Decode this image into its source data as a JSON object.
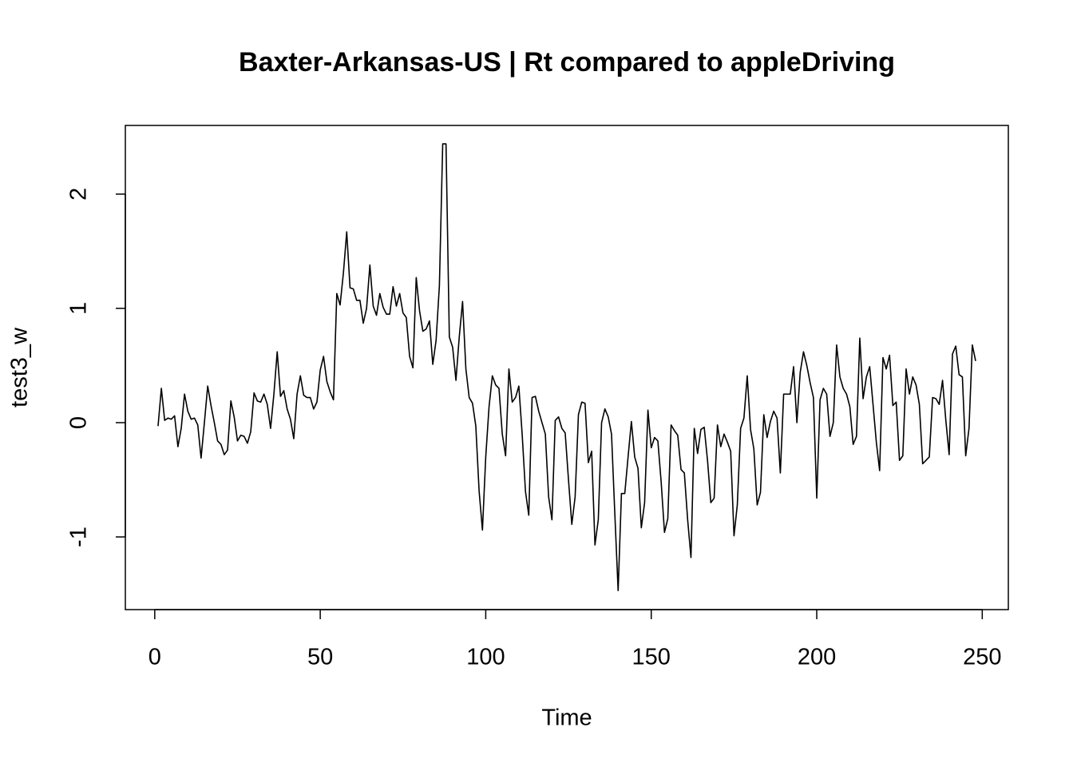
{
  "chart_data": {
    "type": "line",
    "title": "Baxter-Arkansas-US | Rt compared to appleDriving",
    "x_label": "Time",
    "y_label": "test3_w",
    "color": "#000000",
    "x": [
      1,
      2,
      3,
      4,
      5,
      6,
      7,
      8,
      9,
      10,
      11,
      12,
      13,
      14,
      15,
      16,
      17,
      18,
      19,
      20,
      21,
      22,
      23,
      24,
      25,
      26,
      27,
      28,
      29,
      30,
      31,
      32,
      33,
      34,
      35,
      36,
      37,
      38,
      39,
      40,
      41,
      42,
      43,
      44,
      45,
      46,
      47,
      48,
      49,
      50,
      51,
      52,
      53,
      54,
      55,
      56,
      57,
      58,
      59,
      60,
      61,
      62,
      63,
      64,
      65,
      66,
      67,
      68,
      69,
      70,
      71,
      72,
      73,
      74,
      75,
      76,
      77,
      78,
      79,
      80,
      81,
      82,
      83,
      84,
      85,
      86,
      87,
      88,
      89,
      90,
      91,
      92,
      93,
      94,
      95,
      96,
      97,
      98,
      99,
      100,
      101,
      102,
      103,
      104,
      105,
      106,
      107,
      108,
      109,
      110,
      111,
      112,
      113,
      114,
      115,
      116,
      117,
      118,
      119,
      120,
      121,
      122,
      123,
      124,
      125,
      126,
      127,
      128,
      129,
      130,
      131,
      132,
      133,
      134,
      135,
      136,
      137,
      138,
      139,
      140,
      141,
      142,
      143,
      144,
      145,
      146,
      147,
      148,
      149,
      150,
      151,
      152,
      153,
      154,
      155,
      156,
      157,
      158,
      159,
      160,
      161,
      162,
      163,
      164,
      165,
      166,
      167,
      168,
      169,
      170,
      171,
      172,
      173,
      174,
      175,
      176,
      177,
      178,
      179,
      180,
      181,
      182,
      183,
      184,
      185,
      186,
      187,
      188,
      189,
      190,
      191,
      192,
      193,
      194,
      195,
      196,
      197,
      198,
      199,
      200,
      201,
      202,
      203,
      204,
      205,
      206,
      207,
      208,
      209,
      210,
      211,
      212,
      213,
      214,
      215,
      216,
      217,
      218,
      219,
      220,
      221,
      222,
      223,
      224,
      225,
      226,
      227,
      228,
      229,
      230,
      231,
      232,
      233,
      234,
      235,
      236,
      237,
      238,
      239,
      240,
      241,
      242,
      243,
      244,
      245,
      246,
      247,
      248
    ],
    "values": [
      -0.03,
      0.3,
      0.02,
      0.04,
      0.03,
      0.06,
      -0.21,
      -0.05,
      0.25,
      0.1,
      0.03,
      0.04,
      -0.02,
      -0.31,
      0.0,
      0.32,
      0.15,
      0.0,
      -0.16,
      -0.19,
      -0.28,
      -0.24,
      0.19,
      0.05,
      -0.16,
      -0.11,
      -0.12,
      -0.18,
      -0.08,
      0.26,
      0.19,
      0.18,
      0.25,
      0.16,
      -0.05,
      0.25,
      0.62,
      0.23,
      0.28,
      0.12,
      0.03,
      -0.14,
      0.25,
      0.41,
      0.24,
      0.22,
      0.22,
      0.12,
      0.18,
      0.46,
      0.58,
      0.36,
      0.27,
      0.2,
      1.13,
      1.03,
      1.31,
      1.67,
      1.18,
      1.17,
      1.07,
      1.07,
      0.87,
      1.0,
      1.38,
      1.02,
      0.94,
      1.13,
      1.01,
      0.95,
      0.95,
      1.19,
      1.02,
      1.13,
      0.96,
      0.92,
      0.58,
      0.48,
      1.27,
      0.98,
      0.8,
      0.82,
      0.89,
      0.51,
      0.72,
      1.2,
      2.44,
      2.44,
      0.75,
      0.66,
      0.37,
      0.75,
      1.06,
      0.47,
      0.22,
      0.17,
      -0.03,
      -0.6,
      -0.94,
      -0.3,
      0.14,
      0.41,
      0.33,
      0.3,
      -0.1,
      -0.29,
      0.47,
      0.18,
      0.22,
      0.32,
      -0.1,
      -0.6,
      -0.81,
      0.22,
      0.23,
      0.1,
      0.0,
      -0.1,
      -0.65,
      -0.85,
      0.02,
      0.05,
      -0.05,
      -0.09,
      -0.5,
      -0.89,
      -0.65,
      0.07,
      0.18,
      0.17,
      -0.35,
      -0.25,
      -1.07,
      -0.85,
      0.0,
      0.12,
      0.05,
      -0.1,
      -0.8,
      -1.47,
      -0.62,
      -0.62,
      -0.3,
      0.01,
      -0.3,
      -0.4,
      -0.92,
      -0.7,
      0.11,
      -0.22,
      -0.13,
      -0.16,
      -0.52,
      -0.96,
      -0.84,
      -0.02,
      -0.07,
      -0.11,
      -0.41,
      -0.44,
      -0.85,
      -1.18,
      -0.05,
      -0.27,
      -0.06,
      -0.04,
      -0.33,
      -0.7,
      -0.66,
      -0.02,
      -0.21,
      -0.1,
      -0.17,
      -0.25,
      -0.99,
      -0.72,
      -0.05,
      0.04,
      0.41,
      -0.06,
      -0.23,
      -0.72,
      -0.61,
      0.07,
      -0.13,
      0.01,
      0.1,
      0.04,
      -0.44,
      0.25,
      0.25,
      0.25,
      0.49,
      0.0,
      0.44,
      0.62,
      0.5,
      0.35,
      0.22,
      -0.66,
      0.2,
      0.3,
      0.25,
      -0.12,
      0.0,
      0.68,
      0.4,
      0.3,
      0.25,
      0.14,
      -0.19,
      -0.12,
      0.74,
      0.21,
      0.4,
      0.49,
      0.16,
      -0.17,
      -0.42,
      0.57,
      0.47,
      0.59,
      0.15,
      0.18,
      -0.33,
      -0.29,
      0.47,
      0.25,
      0.4,
      0.33,
      0.16,
      -0.36,
      -0.33,
      -0.3,
      0.22,
      0.21,
      0.16,
      0.37,
      0.02,
      -0.28,
      0.6,
      0.67,
      0.42,
      0.4,
      -0.29,
      -0.05,
      0.68,
      0.54
    ],
    "xlim": [
      -8.88,
      257.88
    ],
    "xticks": [
      0,
      50,
      100,
      150,
      200,
      250
    ],
    "ylim": [
      -1.636,
      2.601
    ],
    "yticks": [
      -1,
      0,
      1,
      2
    ]
  }
}
